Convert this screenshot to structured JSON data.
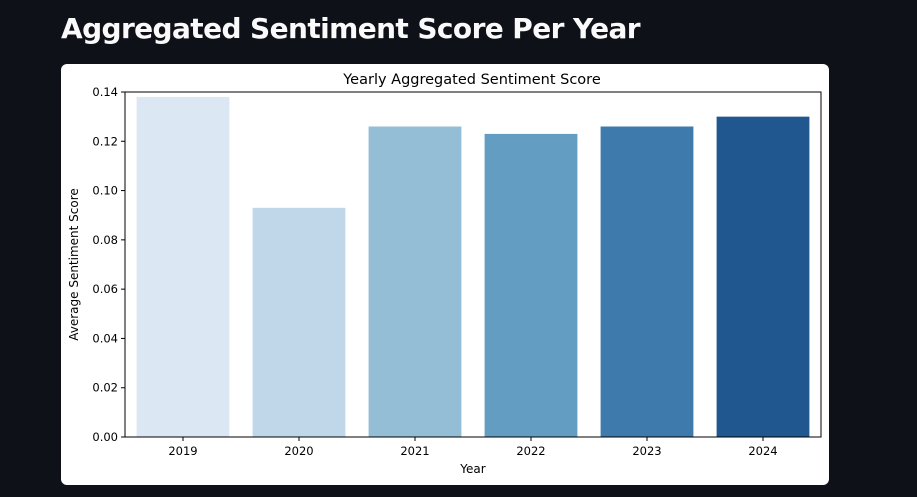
{
  "page": {
    "title": "Aggregated Sentiment Score Per Year"
  },
  "chart_data": {
    "type": "bar",
    "title": "Yearly Aggregated Sentiment Score",
    "xlabel": "Year",
    "ylabel": "Average Sentiment Score",
    "categories": [
      "2019",
      "2020",
      "2021",
      "2022",
      "2023",
      "2024"
    ],
    "values": [
      0.138,
      0.093,
      0.126,
      0.123,
      0.126,
      0.13
    ],
    "colors": [
      "#dbe8f4",
      "#bfd7e8",
      "#94bed5",
      "#639ec2",
      "#3e7bac",
      "#20578f"
    ],
    "ylim": [
      0,
      0.14
    ],
    "yticks": [
      "0.00",
      "0.02",
      "0.04",
      "0.06",
      "0.08",
      "0.10",
      "0.12",
      "0.14"
    ],
    "grid": false,
    "legend": false
  }
}
